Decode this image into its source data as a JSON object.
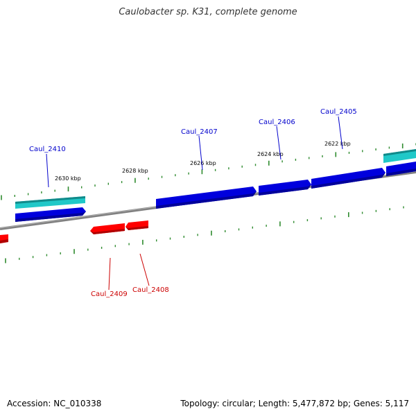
{
  "title": "Caulobacter sp. K31, complete genome",
  "footer": {
    "accession": "Accession: NC_010338",
    "summary": "Topology: circular; Length: 5,477,872 bp; Genes: 5,117"
  },
  "ticks": {
    "labels": [
      "2630 kbp",
      "2628 kbp",
      "2626 kbp",
      "2624 kbp",
      "2622 kbp"
    ],
    "color": "#2e8b2e"
  },
  "genes": {
    "forward": [
      {
        "label": "Caul_2410",
        "color": "#0000dd"
      },
      {
        "label": "Caul_2407",
        "color": "#0000dd"
      },
      {
        "label": "Caul_2406",
        "color": "#0000dd"
      },
      {
        "label": "Caul_2405",
        "color": "#0000dd"
      }
    ],
    "reverse": [
      {
        "label": "Caul_2409",
        "color": "#ff0000"
      },
      {
        "label": "Caul_2408",
        "color": "#ff0000"
      }
    ],
    "rna_color": "#20c8c8",
    "label_colors": {
      "forward": "#0000cc",
      "reverse": "#cc0000"
    }
  },
  "backbone_color": "#808080"
}
